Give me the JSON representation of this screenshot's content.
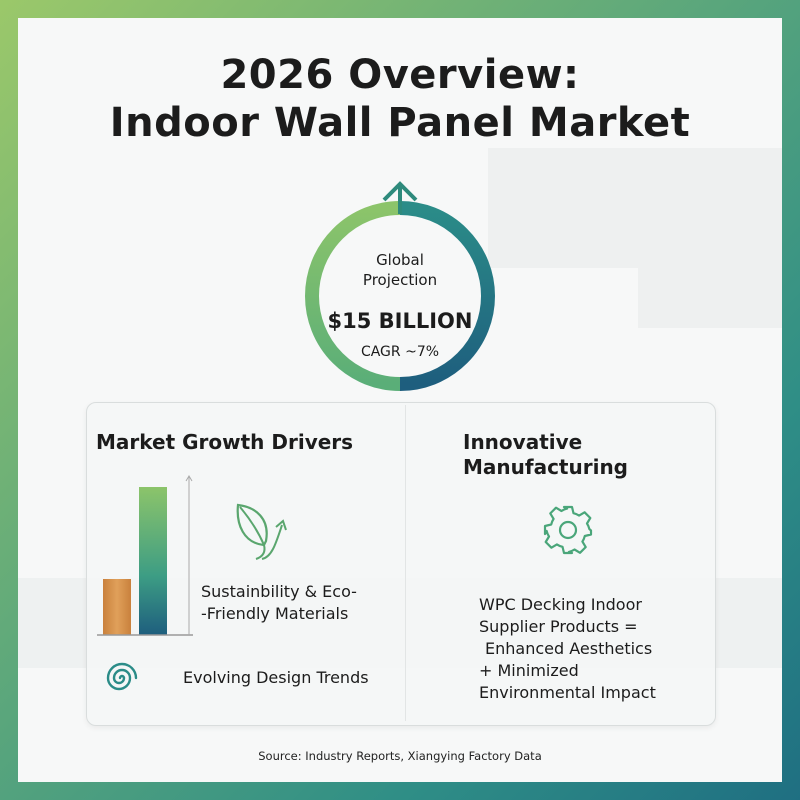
{
  "title": {
    "line1": "2026 Overview:",
    "line2": "Indoor Wall Panel Market"
  },
  "projection": {
    "label_line1": "Global",
    "label_line2": "Projection",
    "value": "$15 BILLION",
    "cagr": "CAGR ~7%",
    "growth_fraction": 0.5
  },
  "left_section": {
    "heading": "Market Growth Drivers",
    "driver1_line1": "Sustainbility & Eco-",
    "driver1_line2": "-Friendly Materials",
    "driver1_icon": "leaf-icon",
    "driver2": "Evolving Design Trends",
    "driver2_icon": "spiral-icon",
    "chart_icon": "bar-chart-icon"
  },
  "right_section": {
    "heading_line1": "Innovative",
    "heading_line2": "Manufacturing",
    "icon": "gear-icon",
    "line1": "WPC Decking Indoor",
    "line2": "Supplier Products =",
    "line3": "Enhanced Aesthetics",
    "line4": "+ Minimized",
    "line5": "Environmental Impact"
  },
  "footer": "Source: Industry Reports, Xiangying Factory Data",
  "colors": {
    "green": "#8cc46a",
    "teal": "#2b8c88",
    "navy": "#1e5e7e",
    "wood": "#d8934a"
  }
}
